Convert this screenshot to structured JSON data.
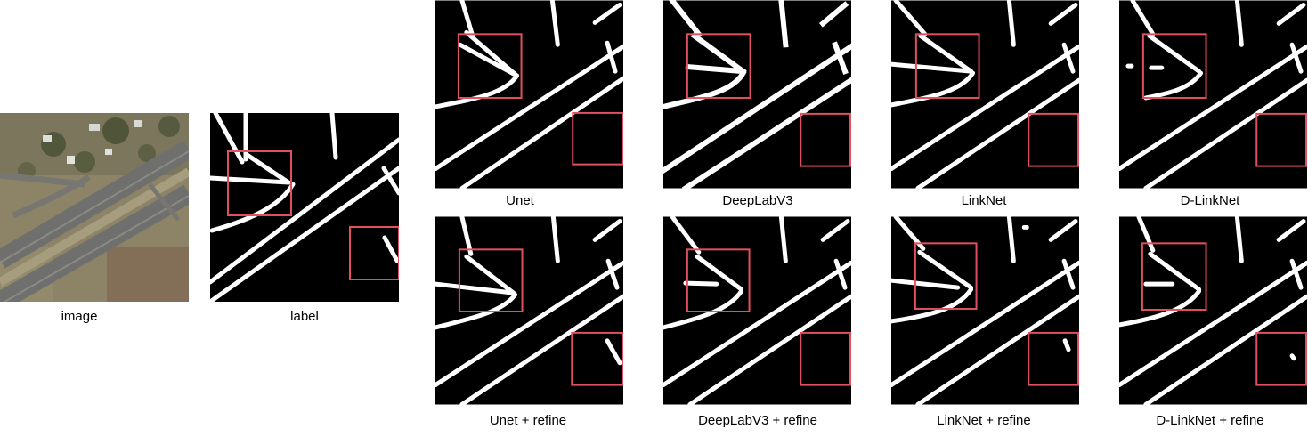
{
  "captions": {
    "image": "image",
    "label": "label",
    "unet": "Unet",
    "deeplab": "DeepLabV3",
    "linknet": "LinkNet",
    "dlinknet": "D-LinkNet",
    "unet_refine": "Unet + refine",
    "deeplab_refine": "DeepLabV3 + refine",
    "linknet_refine": "LinkNet + refine",
    "dlinknet_refine": "D-LinkNet + refine"
  },
  "colors": {
    "mask_background": "#000000",
    "road": "#ffffff",
    "highlight_box": "#e0505e",
    "aerial_ground": "#8f8466",
    "aerial_road": "#7b7b78"
  }
}
